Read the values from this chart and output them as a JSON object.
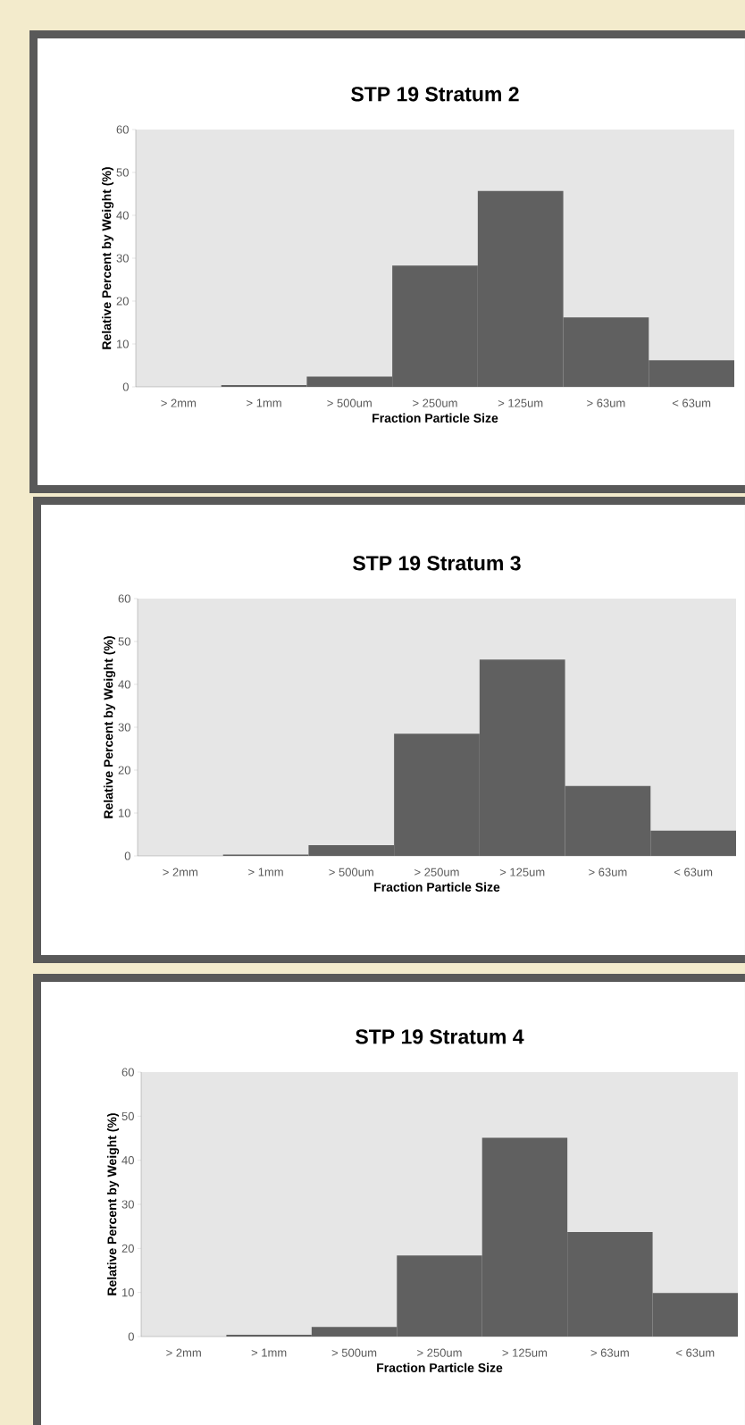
{
  "chart_data": [
    {
      "type": "bar",
      "title": "STP 19 Stratum 2",
      "xlabel": "Fraction Particle Size",
      "ylabel": "Relative Percent by Weight (%)",
      "categories": [
        "> 2mm",
        "> 1mm",
        "> 500um",
        "> 250um",
        "> 125um",
        "> 63um",
        "< 63um"
      ],
      "values": [
        0,
        0.4,
        2.4,
        28.3,
        45.7,
        16.2,
        6.2
      ],
      "color": "#606060",
      "ylim": [
        0,
        60
      ],
      "yticks": [
        0,
        10,
        20,
        30,
        40,
        50,
        60
      ]
    },
    {
      "type": "bar",
      "title": "STP 19 Stratum 3",
      "xlabel": "Fraction Particle Size",
      "ylabel": "Relative Percent by Weight (%)",
      "categories": [
        "> 2mm",
        "> 1mm",
        "> 500um",
        "> 250um",
        "> 125um",
        "> 63um",
        "< 63um"
      ],
      "values": [
        0,
        0.3,
        2.5,
        28.5,
        45.8,
        16.3,
        5.9
      ],
      "color": "#606060",
      "ylim": [
        0,
        60
      ],
      "yticks": [
        0,
        10,
        20,
        30,
        40,
        50,
        60
      ]
    },
    {
      "type": "bar",
      "title": "STP 19 Stratum 4",
      "xlabel": "Fraction Particle Size",
      "ylabel": "Relative Percent by Weight (%)",
      "categories": [
        "> 2mm",
        "> 1mm",
        "> 500um",
        "> 250um",
        "> 125um",
        "> 63um",
        "< 63um"
      ],
      "values": [
        0,
        0.4,
        2.2,
        18.4,
        45.1,
        23.7,
        9.9
      ],
      "color": "#606060",
      "ylim": [
        0,
        60
      ],
      "yticks": [
        0,
        10,
        20,
        30,
        40,
        50,
        60
      ]
    }
  ]
}
